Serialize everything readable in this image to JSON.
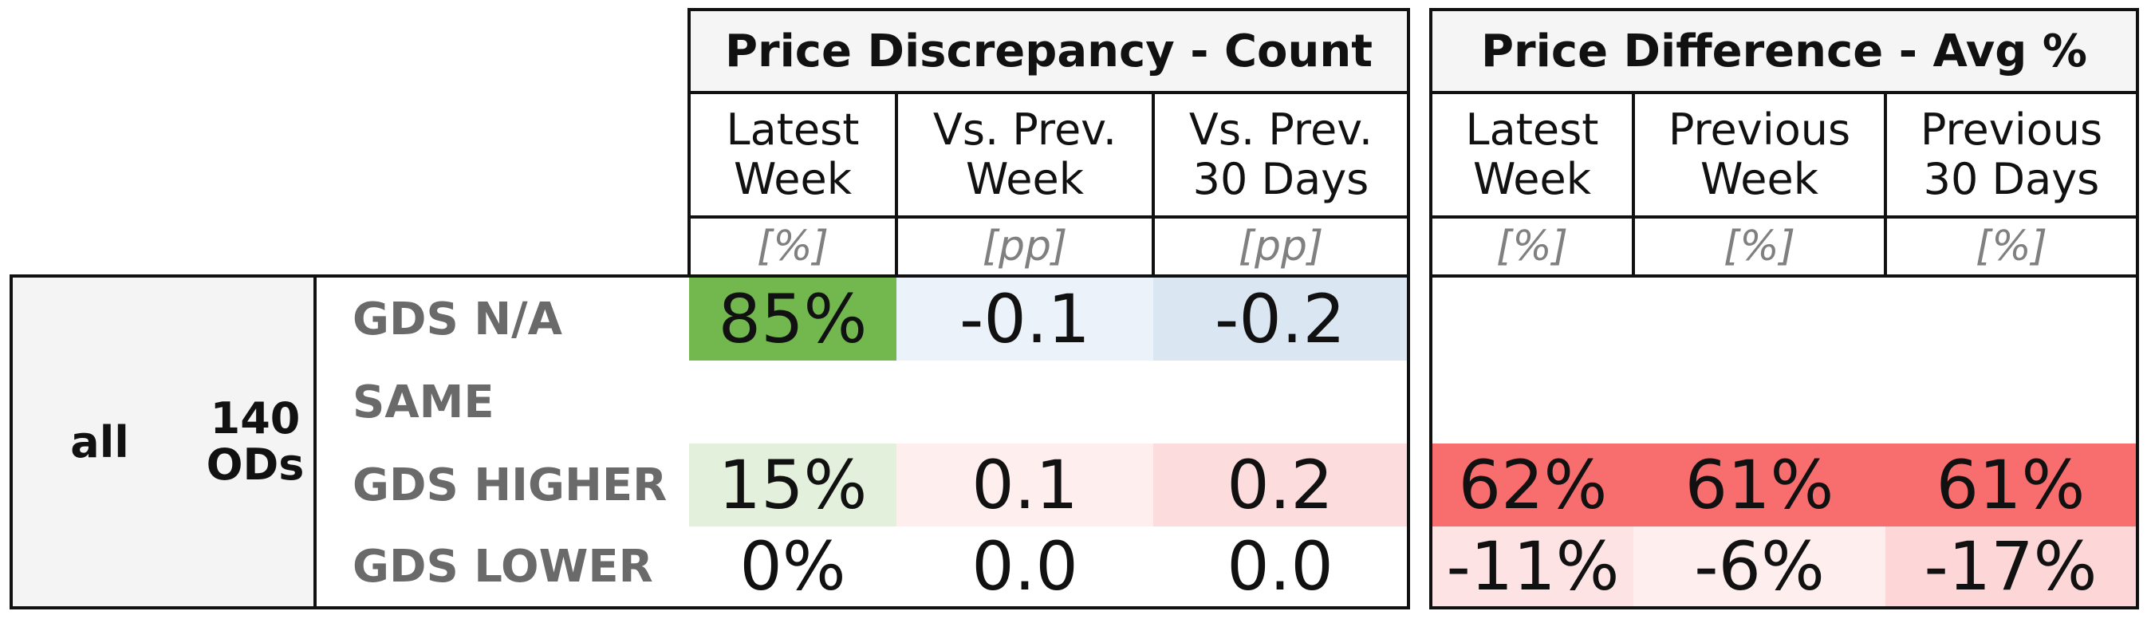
{
  "chart_data": {
    "type": "table",
    "groups": [
      {
        "title": "Price Discrepancy - Count",
        "columns": [
          {
            "header": "Latest\nWeek",
            "unit": "[%]"
          },
          {
            "header": "Vs. Prev.\nWeek",
            "unit": "[pp]"
          },
          {
            "header": "Vs. Prev.\n30 Days",
            "unit": "[pp]"
          }
        ]
      },
      {
        "title": "Price Difference - Avg %",
        "columns": [
          {
            "header": "Latest\nWeek",
            "unit": "[%]"
          },
          {
            "header": "Previous\nWeek",
            "unit": "[%]"
          },
          {
            "header": "Previous\n30 Days",
            "unit": "[%]"
          }
        ]
      }
    ],
    "segment": {
      "name": "all",
      "ods": "140\nODs"
    },
    "rows": [
      {
        "label": "GDS N/A",
        "count": [
          "85%",
          "-0.1",
          "-0.2"
        ],
        "avg": [
          "",
          "",
          ""
        ]
      },
      {
        "label": "SAME",
        "count": [
          "",
          "",
          ""
        ],
        "avg": [
          "",
          "",
          ""
        ]
      },
      {
        "label": "GDS HIGHER",
        "count": [
          "15%",
          "0.1",
          "0.2"
        ],
        "avg": [
          "62%",
          "61%",
          "61%"
        ]
      },
      {
        "label": "GDS LOWER",
        "count": [
          "0%",
          "0.0",
          "0.0"
        ],
        "avg": [
          "-11%",
          "-6%",
          "-17%"
        ]
      }
    ],
    "colors": {
      "count": [
        [
          "#72b84f",
          "#ecf2f9",
          "#dae6f2"
        ],
        [
          "#ffffff",
          "#ffffff",
          "#ffffff"
        ],
        [
          "#e3f0dc",
          "#ffeeee",
          "#fddcdd"
        ],
        [
          "#ffffff",
          "#ffffff",
          "#ffffff"
        ]
      ],
      "avg": [
        [
          "#ffffff",
          "#ffffff",
          "#ffffff"
        ],
        [
          "#ffffff",
          "#ffffff",
          "#ffffff"
        ],
        [
          "#f86d6d",
          "#f86d6d",
          "#f86d6d"
        ],
        [
          "#fde3e3",
          "#ffeeee",
          "#fdd7d8"
        ]
      ]
    }
  }
}
